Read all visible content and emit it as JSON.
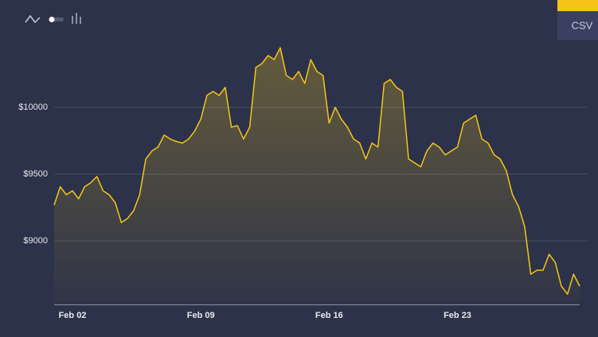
{
  "csv_button": "CSV",
  "chart_data": {
    "type": "line",
    "categories": [
      null,
      null,
      null,
      "Feb 02",
      null,
      null,
      null,
      null,
      null,
      null,
      null,
      null,
      null,
      null,
      null,
      null,
      null,
      null,
      null,
      null,
      null,
      null,
      null,
      null,
      "Feb 09",
      null,
      null,
      null,
      null,
      null,
      null,
      null,
      null,
      null,
      null,
      null,
      null,
      null,
      null,
      null,
      null,
      null,
      null,
      null,
      null,
      "Feb 16",
      null,
      null,
      null,
      null,
      null,
      null,
      null,
      null,
      null,
      null,
      null,
      null,
      null,
      null,
      null,
      null,
      null,
      null,
      null,
      null,
      "Feb 23",
      null,
      null,
      null,
      null,
      null,
      null,
      null,
      null,
      null,
      null,
      null,
      null,
      null,
      null,
      null,
      null,
      null,
      null,
      null,
      null
    ],
    "values": [
      9268,
      9405,
      9345,
      9375,
      9315,
      9405,
      9435,
      9482,
      9375,
      9345,
      9286,
      9137,
      9167,
      9226,
      9345,
      9613,
      9673,
      9702,
      9792,
      9762,
      9744,
      9732,
      9762,
      9821,
      9911,
      10089,
      10119,
      10089,
      10149,
      9851,
      9863,
      9762,
      9851,
      10298,
      10327,
      10387,
      10357,
      10446,
      10238,
      10208,
      10268,
      10178,
      10357,
      10268,
      10238,
      9881,
      10000,
      9911,
      9851,
      9762,
      9732,
      9613,
      9732,
      9702,
      10178,
      10208,
      10149,
      10119,
      9613,
      9583,
      9554,
      9673,
      9732,
      9702,
      9643,
      9673,
      9702,
      9881,
      9911,
      9940,
      9762,
      9732,
      9643,
      9613,
      9524,
      9345,
      9256,
      9107,
      8750,
      8780,
      8780,
      8899,
      8839,
      8661,
      8601,
      8750,
      8661
    ],
    "color": "#f5c518",
    "ylim": [
      8524,
      10565
    ],
    "yticks": [
      {
        "value": 9000,
        "label": "$9000"
      },
      {
        "value": 9500,
        "label": "$9500"
      },
      {
        "value": 10000,
        "label": "$10000"
      }
    ],
    "grid": true
  }
}
